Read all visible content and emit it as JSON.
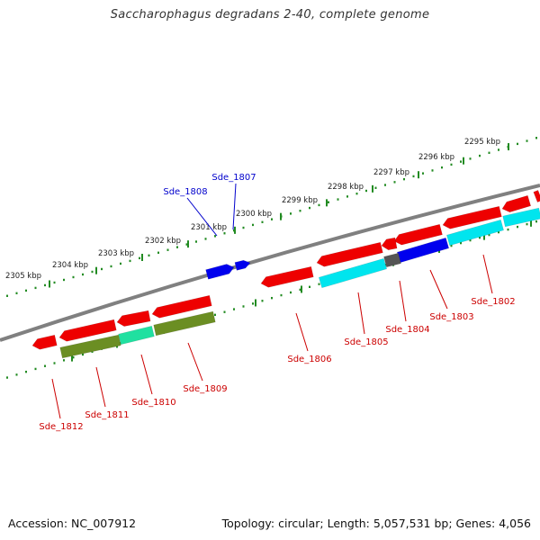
{
  "title": "Saccharophagus degradans 2-40, complete genome",
  "accession": "Accession: NC_007912",
  "stats": "Topology: circular; Length: 5,057,531 bp; Genes: 4,056",
  "colors": {
    "backbone": "#808080",
    "outer_ticks": "#228b22",
    "label_red": "#cc0000",
    "label_blue": "#0000cc",
    "gene_red": "#ee0000",
    "gene_blue": "#0000ee",
    "gene_cyan": "#00e5ee",
    "gene_olive": "#6b8e23",
    "gene_aquamarine": "#20e0a0",
    "gene_gray": "#555555"
  },
  "scale_labels": [
    "2295 kbp",
    "2296 kbp",
    "2297 kbp",
    "2298 kbp",
    "2299 kbp",
    "2300 kbp",
    "2301 kbp",
    "2302 kbp",
    "2303 kbp",
    "2304 kbp",
    "2305 kbp"
  ],
  "gene_labels": [
    {
      "name": "Sde_1807",
      "color": "blue"
    },
    {
      "name": "Sde_1808",
      "color": "blue"
    },
    {
      "name": "Sde_1802",
      "color": "red"
    },
    {
      "name": "Sde_1803",
      "color": "red"
    },
    {
      "name": "Sde_1804",
      "color": "red"
    },
    {
      "name": "Sde_1805",
      "color": "red"
    },
    {
      "name": "Sde_1806",
      "color": "red"
    },
    {
      "name": "Sde_1809",
      "color": "red"
    },
    {
      "name": "Sde_1810",
      "color": "red"
    },
    {
      "name": "Sde_1811",
      "color": "red"
    },
    {
      "name": "Sde_1812",
      "color": "red"
    }
  ]
}
